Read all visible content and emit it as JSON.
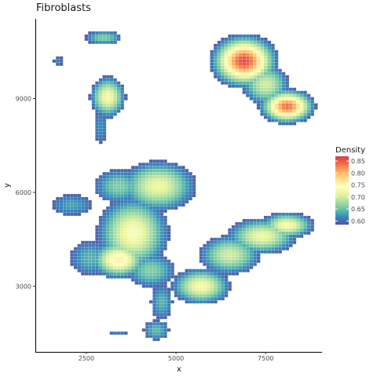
{
  "chart_data": {
    "type": "heatmap",
    "title": "Fibroblasts",
    "xlabel": "x",
    "ylabel": "y",
    "xlim": [
      1100,
      9050
    ],
    "ylim": [
      900,
      11550
    ],
    "x_ticks": [
      2500,
      5000,
      7500
    ],
    "y_ticks": [
      3000,
      6000,
      9000
    ],
    "grid": false,
    "tile_size": 100,
    "threshold": 0.593,
    "legend": {
      "title": "Density",
      "position": "right",
      "breaks": [
        0.6,
        0.65,
        0.7,
        0.75,
        0.8,
        0.85
      ],
      "range": [
        0.585,
        0.87
      ],
      "colors": [
        "#5e4fa2",
        "#3288bd",
        "#66c2a5",
        "#abdda4",
        "#e6f598",
        "#ffffbf",
        "#fee08b",
        "#fdae61",
        "#f46d43",
        "#d53e4f"
      ]
    },
    "density_clusters": [
      {
        "x": 2990,
        "y": 10950,
        "sx": 380,
        "sy": 170,
        "w": 0.66
      },
      {
        "x": 1720,
        "y": 10200,
        "sx": 160,
        "sy": 160,
        "w": 0.61
      },
      {
        "x": 3100,
        "y": 9050,
        "sx": 300,
        "sy": 400,
        "w": 0.73
      },
      {
        "x": 2900,
        "y": 8100,
        "sx": 200,
        "sy": 520,
        "w": 0.62
      },
      {
        "x": 6900,
        "y": 10200,
        "sx": 500,
        "sy": 450,
        "w": 0.86
      },
      {
        "x": 8100,
        "y": 8750,
        "sx": 420,
        "sy": 300,
        "w": 0.84
      },
      {
        "x": 7500,
        "y": 9450,
        "sx": 420,
        "sy": 420,
        "w": 0.7
      },
      {
        "x": 4500,
        "y": 6200,
        "sx": 650,
        "sy": 500,
        "w": 0.72
      },
      {
        "x": 3400,
        "y": 6200,
        "sx": 500,
        "sy": 400,
        "w": 0.66
      },
      {
        "x": 2100,
        "y": 5600,
        "sx": 500,
        "sy": 300,
        "w": 0.63
      },
      {
        "x": 3800,
        "y": 4700,
        "sx": 600,
        "sy": 700,
        "w": 0.735
      },
      {
        "x": 3400,
        "y": 3850,
        "sx": 450,
        "sy": 350,
        "w": 0.76
      },
      {
        "x": 2600,
        "y": 3900,
        "sx": 450,
        "sy": 450,
        "w": 0.64
      },
      {
        "x": 4300,
        "y": 3500,
        "sx": 500,
        "sy": 400,
        "w": 0.66
      },
      {
        "x": 4600,
        "y": 2500,
        "sx": 250,
        "sy": 450,
        "w": 0.64
      },
      {
        "x": 4450,
        "y": 1600,
        "sx": 280,
        "sy": 260,
        "w": 0.645
      },
      {
        "x": 3400,
        "y": 1500,
        "sx": 350,
        "sy": 120,
        "w": 0.61
      },
      {
        "x": 5700,
        "y": 3000,
        "sx": 500,
        "sy": 350,
        "w": 0.73
      },
      {
        "x": 6500,
        "y": 4000,
        "sx": 550,
        "sy": 400,
        "w": 0.7
      },
      {
        "x": 7400,
        "y": 4600,
        "sx": 600,
        "sy": 350,
        "w": 0.72
      },
      {
        "x": 8100,
        "y": 4950,
        "sx": 450,
        "sy": 250,
        "w": 0.73
      }
    ]
  }
}
